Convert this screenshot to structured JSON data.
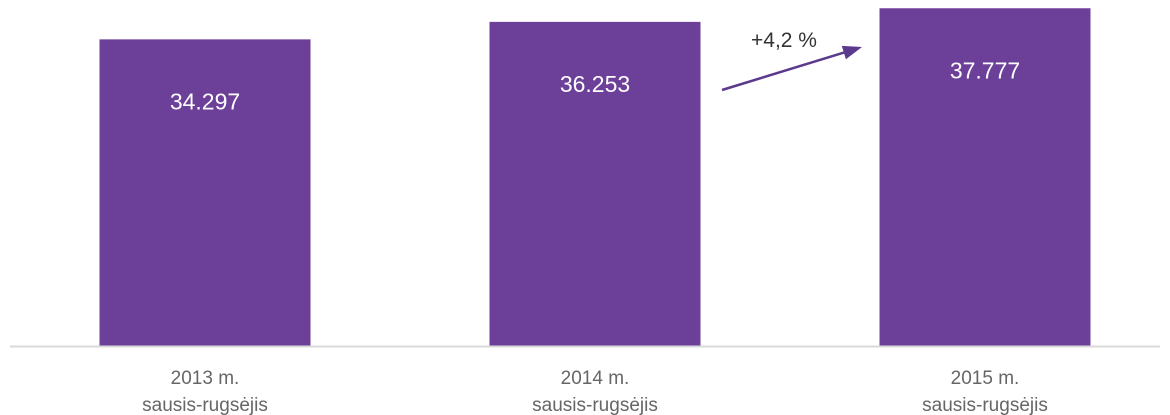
{
  "chart_data": {
    "type": "bar",
    "categories": [
      [
        "2013 m.",
        "sausis-rugsėjis"
      ],
      [
        "2014 m.",
        "sausis-rugsėjis"
      ],
      [
        "2015 m.",
        "sausis-rugsėjis"
      ]
    ],
    "values": [
      34297,
      36253,
      37777
    ],
    "value_labels": [
      "34.297",
      "36.253",
      "37.777"
    ],
    "annotation": "+4,2 %",
    "bar_color": "#6c3f99",
    "axis_color": "#d9d9d9",
    "arrow_color": "#5b3a8e",
    "title": "",
    "xlabel": "",
    "ylabel": "",
    "ylim": [
      0,
      38700
    ],
    "grid": false,
    "legend": "none"
  }
}
